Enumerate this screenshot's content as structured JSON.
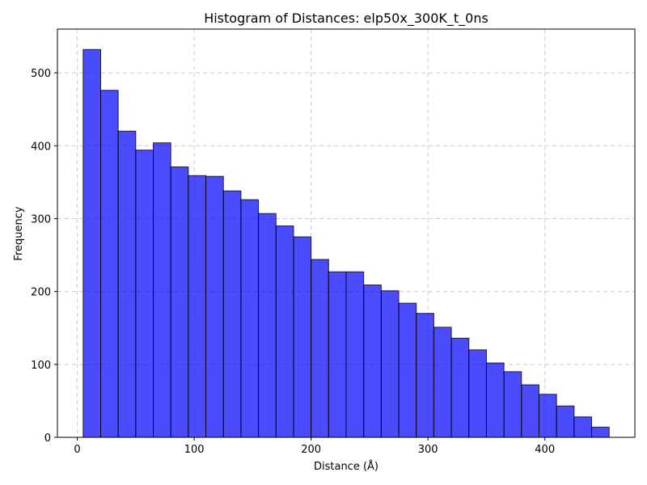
{
  "chart_data": {
    "type": "bar",
    "title": "Histogram of Distances: elp50x_300K_t_0ns",
    "xlabel": "Distance (Å)",
    "ylabel": "Frequency",
    "xlim": [
      -17,
      477
    ],
    "ylim": [
      0,
      560
    ],
    "xticks": [
      0,
      100,
      200,
      300,
      400
    ],
    "yticks": [
      0,
      100,
      200,
      300,
      400,
      500
    ],
    "grid": true,
    "bar_color": "#0000ff",
    "bar_edge_color": "#000000",
    "bar_alpha": 0.7,
    "bins": [
      {
        "x0": 5,
        "x1": 20,
        "value": 532
      },
      {
        "x0": 20,
        "x1": 35,
        "value": 476
      },
      {
        "x0": 35,
        "x1": 50,
        "value": 420
      },
      {
        "x0": 50,
        "x1": 65,
        "value": 394
      },
      {
        "x0": 65,
        "x1": 80,
        "value": 404
      },
      {
        "x0": 80,
        "x1": 95,
        "value": 371
      },
      {
        "x0": 95,
        "x1": 110,
        "value": 359
      },
      {
        "x0": 110,
        "x1": 125,
        "value": 358
      },
      {
        "x0": 125,
        "x1": 140,
        "value": 338
      },
      {
        "x0": 140,
        "x1": 155,
        "value": 326
      },
      {
        "x0": 155,
        "x1": 170,
        "value": 307
      },
      {
        "x0": 170,
        "x1": 185,
        "value": 290
      },
      {
        "x0": 185,
        "x1": 200,
        "value": 275
      },
      {
        "x0": 200,
        "x1": 215,
        "value": 244
      },
      {
        "x0": 215,
        "x1": 230,
        "value": 227
      },
      {
        "x0": 230,
        "x1": 245,
        "value": 227
      },
      {
        "x0": 245,
        "x1": 260,
        "value": 209
      },
      {
        "x0": 260,
        "x1": 275,
        "value": 201
      },
      {
        "x0": 275,
        "x1": 290,
        "value": 184
      },
      {
        "x0": 290,
        "x1": 305,
        "value": 170
      },
      {
        "x0": 305,
        "x1": 320,
        "value": 151
      },
      {
        "x0": 320,
        "x1": 335,
        "value": 136
      },
      {
        "x0": 335,
        "x1": 350,
        "value": 120
      },
      {
        "x0": 350,
        "x1": 365,
        "value": 102
      },
      {
        "x0": 365,
        "x1": 380,
        "value": 90
      },
      {
        "x0": 380,
        "x1": 395,
        "value": 72
      },
      {
        "x0": 395,
        "x1": 410,
        "value": 59
      },
      {
        "x0": 410,
        "x1": 425,
        "value": 43
      },
      {
        "x0": 425,
        "x1": 440,
        "value": 28
      },
      {
        "x0": 440,
        "x1": 455,
        "value": 14
      }
    ]
  }
}
